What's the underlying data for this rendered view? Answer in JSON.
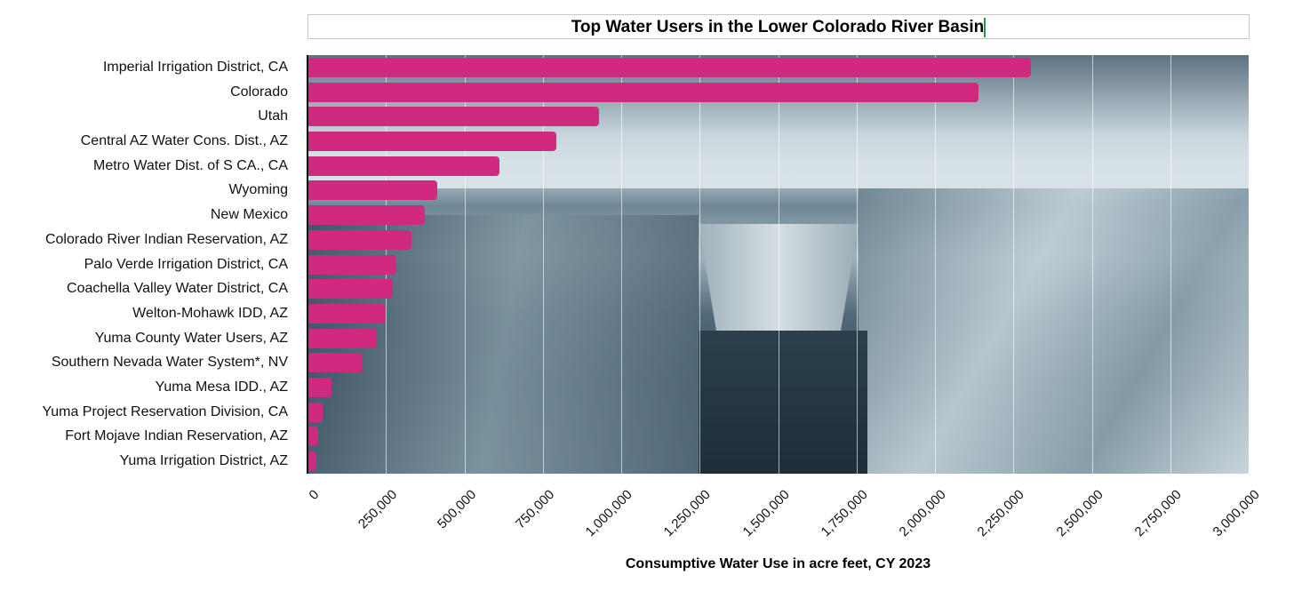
{
  "chart_data": {
    "type": "bar",
    "orientation": "horizontal",
    "title": "Top Water Users in the Lower Colorado River Basin",
    "xlabel": "Consumptive Water Use in acre feet, CY 2023",
    "ylabel": "",
    "xlim": [
      0,
      3000000
    ],
    "grid": true,
    "bar_color": "#cf2a7f",
    "categories": [
      "Imperial Irrigation District, CA",
      "Colorado",
      "Utah",
      "Central AZ Water Cons. Dist., AZ",
      "Metro Water Dist. of S CA., CA",
      "Wyoming",
      "New Mexico",
      "Colorado River Indian Reservation, AZ",
      "Palo Verde Irrigation District, CA",
      "Coachella Valley Water District, CA",
      "Welton-Mohawk IDD, AZ",
      "Yuma County Water Users, AZ",
      "Southern Nevada Water System*, NV",
      "Yuma Mesa IDD., AZ",
      "Yuma Project Reservation Division, CA",
      "Fort Mojave Indian Reservation, AZ",
      "Yuma Irrigation District, AZ"
    ],
    "values": [
      2306000,
      2139000,
      929000,
      793000,
      612000,
      414000,
      374000,
      331000,
      283000,
      272000,
      249000,
      222000,
      176000,
      76000,
      48000,
      33000,
      28000
    ],
    "xticks": [
      0,
      250000,
      500000,
      750000,
      1000000,
      1250000,
      1500000,
      1750000,
      2000000,
      2250000,
      2500000,
      2750000,
      3000000
    ],
    "xtick_labels": [
      "0",
      "250,000",
      "500,000",
      "750,000",
      "1,000,000",
      "1,250,000",
      "1,500,000",
      "1,750,000",
      "2,000,000",
      "2,250,000",
      "2,500,000",
      "2,750,000",
      "3,000,000"
    ]
  }
}
